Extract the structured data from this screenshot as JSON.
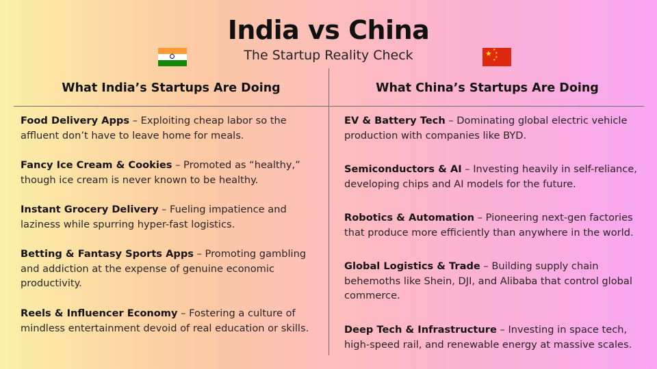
{
  "header": {
    "title": "India vs China",
    "subtitle": "The Startup Reality Check"
  },
  "india": {
    "heading": "What India’s Startups Are Doing",
    "flag_icon": "india-flag-icon",
    "items": [
      {
        "name": "Food Delivery Apps",
        "desc": "Exploiting cheap labor so the affluent don’t have to leave home for meals."
      },
      {
        "name": "Fancy Ice Cream & Cookies",
        "desc": "Promoted as “healthy,” though ice cream is never known to be healthy."
      },
      {
        "name": "Instant Grocery Delivery",
        "desc": "Fueling impatience and laziness while spurring hyper-fast logistics."
      },
      {
        "name": "Betting & Fantasy Sports Apps",
        "desc": "Promoting gambling and addiction at the expense of genuine economic productivity."
      },
      {
        "name": "Reels & Influencer Economy",
        "desc": "Fostering a culture of mindless entertainment devoid of real education or skills."
      }
    ]
  },
  "china": {
    "heading": "What China’s Startups Are Doing",
    "flag_icon": "china-flag-icon",
    "items": [
      {
        "name": "EV & Battery Tech",
        "desc": "Dominating global electric vehicle production with companies like BYD."
      },
      {
        "name": "Semiconductors & AI",
        "desc": "Investing heavily in self-reliance, developing chips and AI models for the future."
      },
      {
        "name": "Robotics & Automation",
        "desc": "Pioneering next-gen factories that produce more efficiently than anywhere in the world."
      },
      {
        "name": "Global Logistics & Trade",
        "desc": "Building supply chain behemoths like Shein, DJI, and Alibaba that control global commerce."
      },
      {
        "name": "Deep Tech & Infrastructure",
        "desc": "Investing in space tech, high-speed rail, and renewable energy at massive scales."
      }
    ]
  },
  "separator": " – ",
  "colors": {
    "background_left": "#fbefa6",
    "background_right": "#f8a6f2",
    "divider": "#7a6d72"
  }
}
